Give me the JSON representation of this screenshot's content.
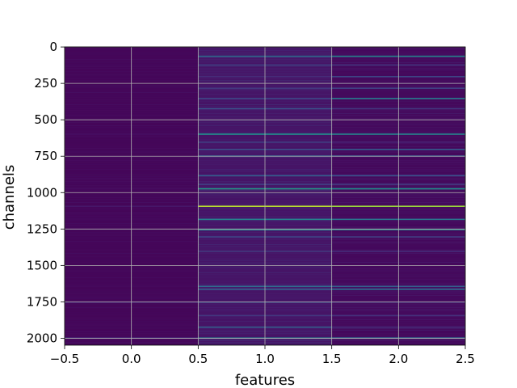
{
  "chart_data": {
    "type": "heatmap",
    "xlabel": "features",
    "ylabel": "channels",
    "xlim": [
      -0.5,
      2.5
    ],
    "ylim": [
      2047.5,
      -0.5
    ],
    "x_ticks": [
      -0.5,
      0.0,
      0.5,
      1.0,
      1.5,
      2.0,
      2.5
    ],
    "x_tick_labels": [
      "−0.5",
      "0.0",
      "0.5",
      "1.0",
      "1.5",
      "2.0",
      "2.5"
    ],
    "y_ticks": [
      0,
      250,
      500,
      750,
      1000,
      1250,
      1500,
      1750,
      2000
    ],
    "y_tick_labels": [
      "0",
      "250",
      "500",
      "750",
      "1000",
      "1250",
      "1500",
      "1750",
      "2000"
    ],
    "grid": true,
    "colormap": "viridis",
    "columns": [
      0,
      1,
      2
    ],
    "rows": 2048,
    "background_levels": [
      0.02,
      0.07,
      0.03
    ],
    "highlighted_channels": [
      {
        "channel": 60,
        "values": [
          0.02,
          0.35,
          0.45
        ]
      },
      {
        "channel": 120,
        "values": [
          0.03,
          0.2,
          0.18
        ]
      },
      {
        "channel": 200,
        "values": [
          0.02,
          0.15,
          0.22
        ]
      },
      {
        "channel": 280,
        "values": [
          0.02,
          0.18,
          0.2
        ]
      },
      {
        "channel": 350,
        "values": [
          0.02,
          0.22,
          0.42
        ]
      },
      {
        "channel": 420,
        "values": [
          0.03,
          0.25,
          0.18
        ]
      },
      {
        "channel": 595,
        "values": [
          0.05,
          0.5,
          0.45
        ]
      },
      {
        "channel": 650,
        "values": [
          0.02,
          0.2,
          0.12
        ]
      },
      {
        "channel": 700,
        "values": [
          0.02,
          0.25,
          0.3
        ]
      },
      {
        "channel": 745,
        "values": [
          0.03,
          0.3,
          0.28
        ]
      },
      {
        "channel": 880,
        "values": [
          0.02,
          0.3,
          0.25
        ]
      },
      {
        "channel": 940,
        "values": [
          0.02,
          0.2,
          0.18
        ]
      },
      {
        "channel": 970,
        "values": [
          0.05,
          0.55,
          0.5
        ]
      },
      {
        "channel": 1090,
        "values": [
          0.08,
          0.9,
          0.85
        ]
      },
      {
        "channel": 1180,
        "values": [
          0.03,
          0.45,
          0.4
        ]
      },
      {
        "channel": 1250,
        "values": [
          0.04,
          0.5,
          0.48
        ]
      },
      {
        "channel": 1300,
        "values": [
          0.02,
          0.22,
          0.2
        ]
      },
      {
        "channel": 1400,
        "values": [
          0.02,
          0.18,
          0.15
        ]
      },
      {
        "channel": 1640,
        "values": [
          0.03,
          0.35,
          0.3
        ]
      },
      {
        "channel": 1660,
        "values": [
          0.02,
          0.3,
          0.35
        ]
      },
      {
        "channel": 1750,
        "values": [
          0.12,
          0.2,
          0.15
        ]
      },
      {
        "channel": 1840,
        "values": [
          0.02,
          0.18,
          0.16
        ]
      },
      {
        "channel": 1920,
        "values": [
          0.03,
          0.3,
          0.15
        ]
      },
      {
        "channel": 1995,
        "values": [
          0.15,
          0.45,
          0.4
        ]
      }
    ]
  }
}
